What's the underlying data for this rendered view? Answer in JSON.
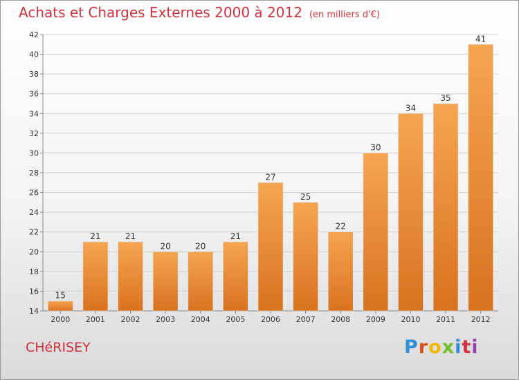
{
  "title": "Achats et Charges Externes 2000 à 2012",
  "unit": "(en milliers d'€)",
  "town": "CHéRISEY",
  "logo": {
    "text": "Proxiti"
  },
  "colors": {
    "bar_top": "#f5a551",
    "bar_bottom": "#d9721f",
    "title": "#d2303c",
    "grid": "#cfcfcf"
  },
  "chart_data": {
    "type": "bar",
    "categories": [
      "2000",
      "2001",
      "2002",
      "2003",
      "2004",
      "2005",
      "2006",
      "2007",
      "2008",
      "2009",
      "2010",
      "2011",
      "2012"
    ],
    "values": [
      15,
      21,
      21,
      20,
      20,
      21,
      27,
      25,
      22,
      30,
      34,
      35,
      41
    ],
    "ylim": [
      14,
      42
    ],
    "yticks": [
      14,
      16,
      18,
      20,
      22,
      24,
      26,
      28,
      30,
      32,
      34,
      36,
      38,
      40,
      42
    ],
    "grid": true,
    "xlabel": "",
    "ylabel": ""
  }
}
